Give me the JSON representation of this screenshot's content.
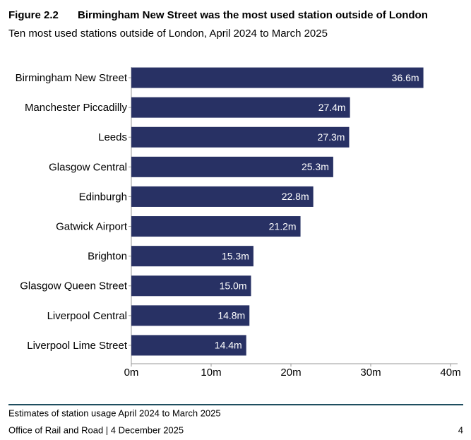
{
  "figure_label": "Figure 2.2",
  "chart_data": {
    "type": "hbar",
    "title": "Birmingham New Street was the most used station outside of London",
    "subtitle": "Ten most used stations outside of London, April 2024 to March 2025",
    "categories": [
      "Birmingham New Street",
      "Manchester Piccadilly",
      "Leeds",
      "Glasgow Central",
      "Edinburgh",
      "Gatwick Airport",
      "Brighton",
      "Glasgow Queen Street",
      "Liverpool Central",
      "Liverpool Lime Street"
    ],
    "values": [
      36.6,
      27.4,
      27.3,
      25.3,
      22.8,
      21.2,
      15.3,
      15.0,
      14.8,
      14.4
    ],
    "value_labels": [
      "36.6m",
      "27.4m",
      "27.3m",
      "25.3m",
      "22.8m",
      "21.2m",
      "15.3m",
      "15.0m",
      "14.8m",
      "14.4m"
    ],
    "color": "#283164",
    "xlim": [
      0,
      40
    ],
    "xticks": [
      {
        "value": 0,
        "label": "0m"
      },
      {
        "value": 10,
        "label": "10m"
      },
      {
        "value": 20,
        "label": "20m"
      },
      {
        "value": 30,
        "label": "30m"
      },
      {
        "value": 40,
        "label": "40m"
      }
    ]
  },
  "footer": {
    "note": "Estimates of station usage April 2024 to March 2025",
    "source": "Office of Rail and Road | 4 December 2025",
    "page": "4"
  }
}
